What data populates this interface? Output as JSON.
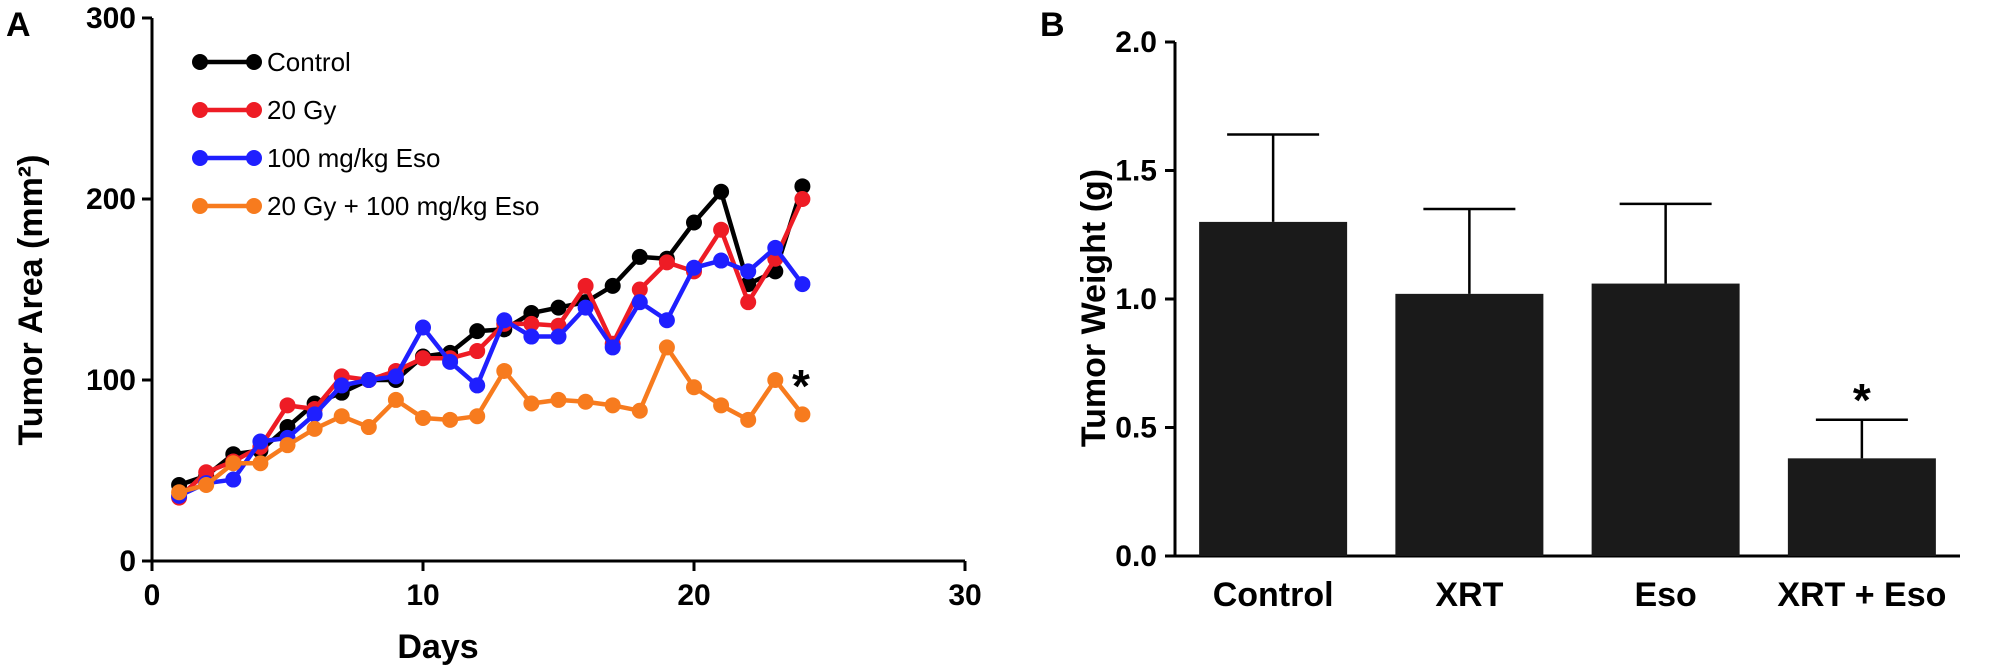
{
  "chart_data": [
    {
      "panel": "A",
      "type": "line",
      "xlabel": "Days",
      "ylabel": "Tumor Area (mm²)",
      "xlim": [
        0,
        30
      ],
      "ylim": [
        0,
        300
      ],
      "xticks": [
        "0",
        "10",
        "20",
        "30"
      ],
      "yticks": [
        "0",
        "100",
        "200",
        "300"
      ],
      "legend_position": "top-left",
      "annotation": "*",
      "series": [
        {
          "name": "Control",
          "color": "#000000",
          "x": [
            1,
            2,
            3,
            4,
            5,
            6,
            7,
            8,
            9,
            10,
            11,
            12,
            13,
            14,
            15,
            16,
            17,
            18,
            19,
            20,
            21,
            22,
            23,
            24
          ],
          "y": [
            42,
            47,
            59,
            61,
            74,
            87,
            93,
            100,
            100,
            113,
            115,
            127,
            128,
            137,
            140,
            143,
            152,
            168,
            167,
            187,
            204,
            153,
            160,
            207
          ]
        },
        {
          "name": "20 Gy",
          "color": "#ee1c25",
          "x": [
            1,
            2,
            3,
            4,
            5,
            6,
            7,
            8,
            9,
            10,
            11,
            12,
            13,
            14,
            15,
            16,
            17,
            18,
            19,
            20,
            21,
            22,
            23,
            24
          ],
          "y": [
            35,
            49,
            55,
            63,
            86,
            84,
            102,
            100,
            105,
            112,
            112,
            116,
            131,
            131,
            130,
            152,
            120,
            150,
            165,
            160,
            183,
            143,
            167,
            200
          ]
        },
        {
          "name": "100 mg/kg Eso",
          "color": "#1f1fff",
          "x": [
            1,
            2,
            3,
            4,
            5,
            6,
            7,
            8,
            9,
            10,
            11,
            12,
            13,
            14,
            15,
            16,
            17,
            18,
            19,
            20,
            21,
            22,
            23,
            24
          ],
          "y": [
            36,
            43,
            45,
            66,
            68,
            81,
            97,
            100,
            102,
            129,
            110,
            97,
            133,
            124,
            124,
            140,
            118,
            143,
            133,
            162,
            166,
            160,
            173,
            153
          ]
        },
        {
          "name": "20 Gy + 100 mg/kg Eso",
          "color": "#f77b1e",
          "x": [
            1,
            2,
            3,
            4,
            5,
            6,
            7,
            8,
            9,
            10,
            11,
            12,
            13,
            14,
            15,
            16,
            17,
            18,
            19,
            20,
            21,
            22,
            23,
            24
          ],
          "y": [
            38,
            42,
            54,
            54,
            64,
            73,
            80,
            74,
            89,
            79,
            78,
            80,
            105,
            87,
            89,
            88,
            86,
            83,
            118,
            96,
            86,
            78,
            100,
            81
          ]
        }
      ]
    },
    {
      "panel": "B",
      "type": "bar",
      "ylabel": "Tumor Weight (g)",
      "ylim": [
        0,
        2.0
      ],
      "yticks": [
        "0.0",
        "0.5",
        "1.0",
        "1.5",
        "2.0"
      ],
      "categories": [
        "Control",
        "XRT",
        "Eso",
        "XRT + Eso"
      ],
      "values": [
        1.3,
        1.02,
        1.06,
        0.38
      ],
      "errors": [
        0.34,
        0.33,
        0.31,
        0.15
      ],
      "bar_color": "#1a1a1a",
      "significance": [
        "",
        "",
        "",
        "*"
      ]
    }
  ]
}
